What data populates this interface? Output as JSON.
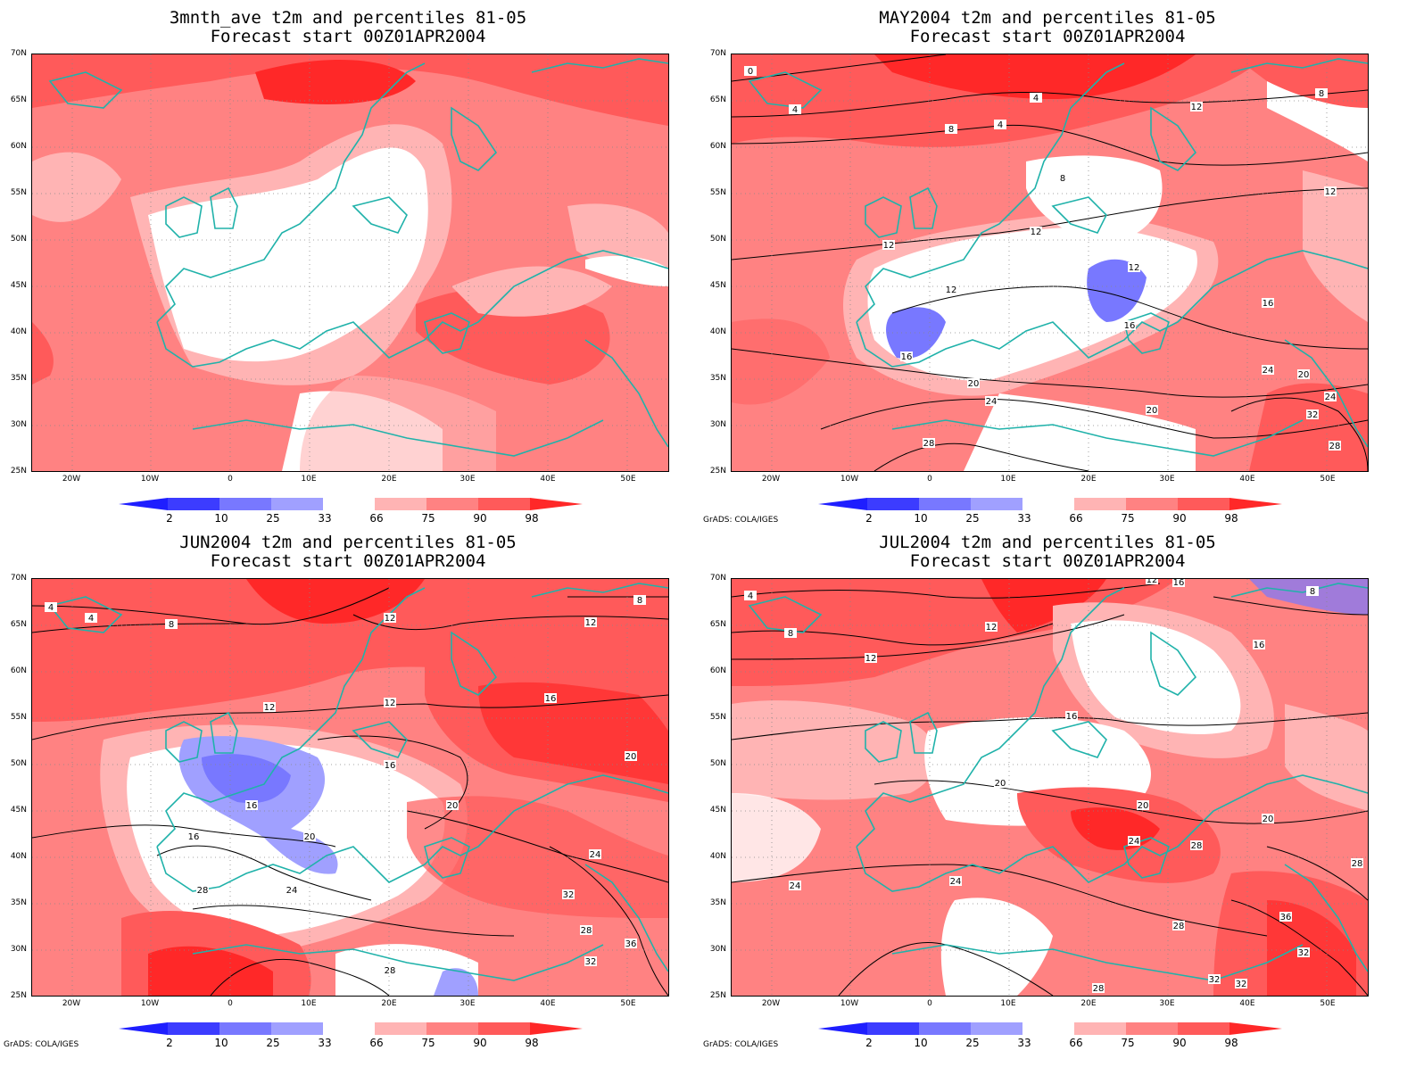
{
  "panels": [
    {
      "id": "p1",
      "title_line1": "3mnth_ave t2m and percentiles 81-05",
      "title_line2": "Forecast start 00Z01APR2004",
      "credit": ""
    },
    {
      "id": "p2",
      "title_line1": "MAY2004 t2m and percentiles 81-05",
      "title_line2": "Forecast start 00Z01APR2004",
      "credit": "GrADS: COLA/IGES"
    },
    {
      "id": "p3",
      "title_line1": "JUN2004 t2m and percentiles 81-05",
      "title_line2": "Forecast start 00Z01APR2004",
      "credit": "GrADS: COLA/IGES"
    },
    {
      "id": "p4",
      "title_line1": "JUL2004 t2m and percentiles 81-05",
      "title_line2": "Forecast start 00Z01APR2004",
      "credit": "GrADS: COLA/IGES"
    }
  ],
  "lat_labels": [
    "70N",
    "65N",
    "60N",
    "55N",
    "50N",
    "45N",
    "40N",
    "35N",
    "30N",
    "25N"
  ],
  "lon_labels": [
    "20W",
    "10W",
    "0",
    "10E",
    "20E",
    "30E",
    "40E",
    "50E"
  ],
  "colorbar": {
    "labels": [
      "2",
      "10",
      "25",
      "33",
      "66",
      "75",
      "90",
      "98"
    ],
    "colors": [
      "#1e1eff",
      "#3c3cff",
      "#7878ff",
      "#a0a0ff",
      "#ffffff",
      "#ffb4b4",
      "#ff8282",
      "#ff5a5a",
      "#ff2828"
    ]
  },
  "contour_labels": {
    "p2": [
      "0",
      "4",
      "4",
      "4",
      "8",
      "8",
      "8",
      "12",
      "12",
      "12",
      "12",
      "12",
      "12",
      "16",
      "16",
      "16",
      "20",
      "20",
      "20",
      "24",
      "24",
      "24",
      "28",
      "28",
      "32"
    ],
    "p3": [
      "4",
      "4",
      "8",
      "8",
      "12",
      "12",
      "12",
      "12",
      "16",
      "16",
      "16",
      "16",
      "20",
      "20",
      "20",
      "24",
      "24",
      "28",
      "28",
      "32",
      "32",
      "36",
      "28"
    ],
    "p4": [
      "4",
      "8",
      "8",
      "12",
      "12",
      "12",
      "16",
      "16",
      "16",
      "20",
      "20",
      "20",
      "24",
      "24",
      "24",
      "28",
      "28",
      "28",
      "32",
      "32",
      "36",
      "32",
      "28"
    ]
  }
}
